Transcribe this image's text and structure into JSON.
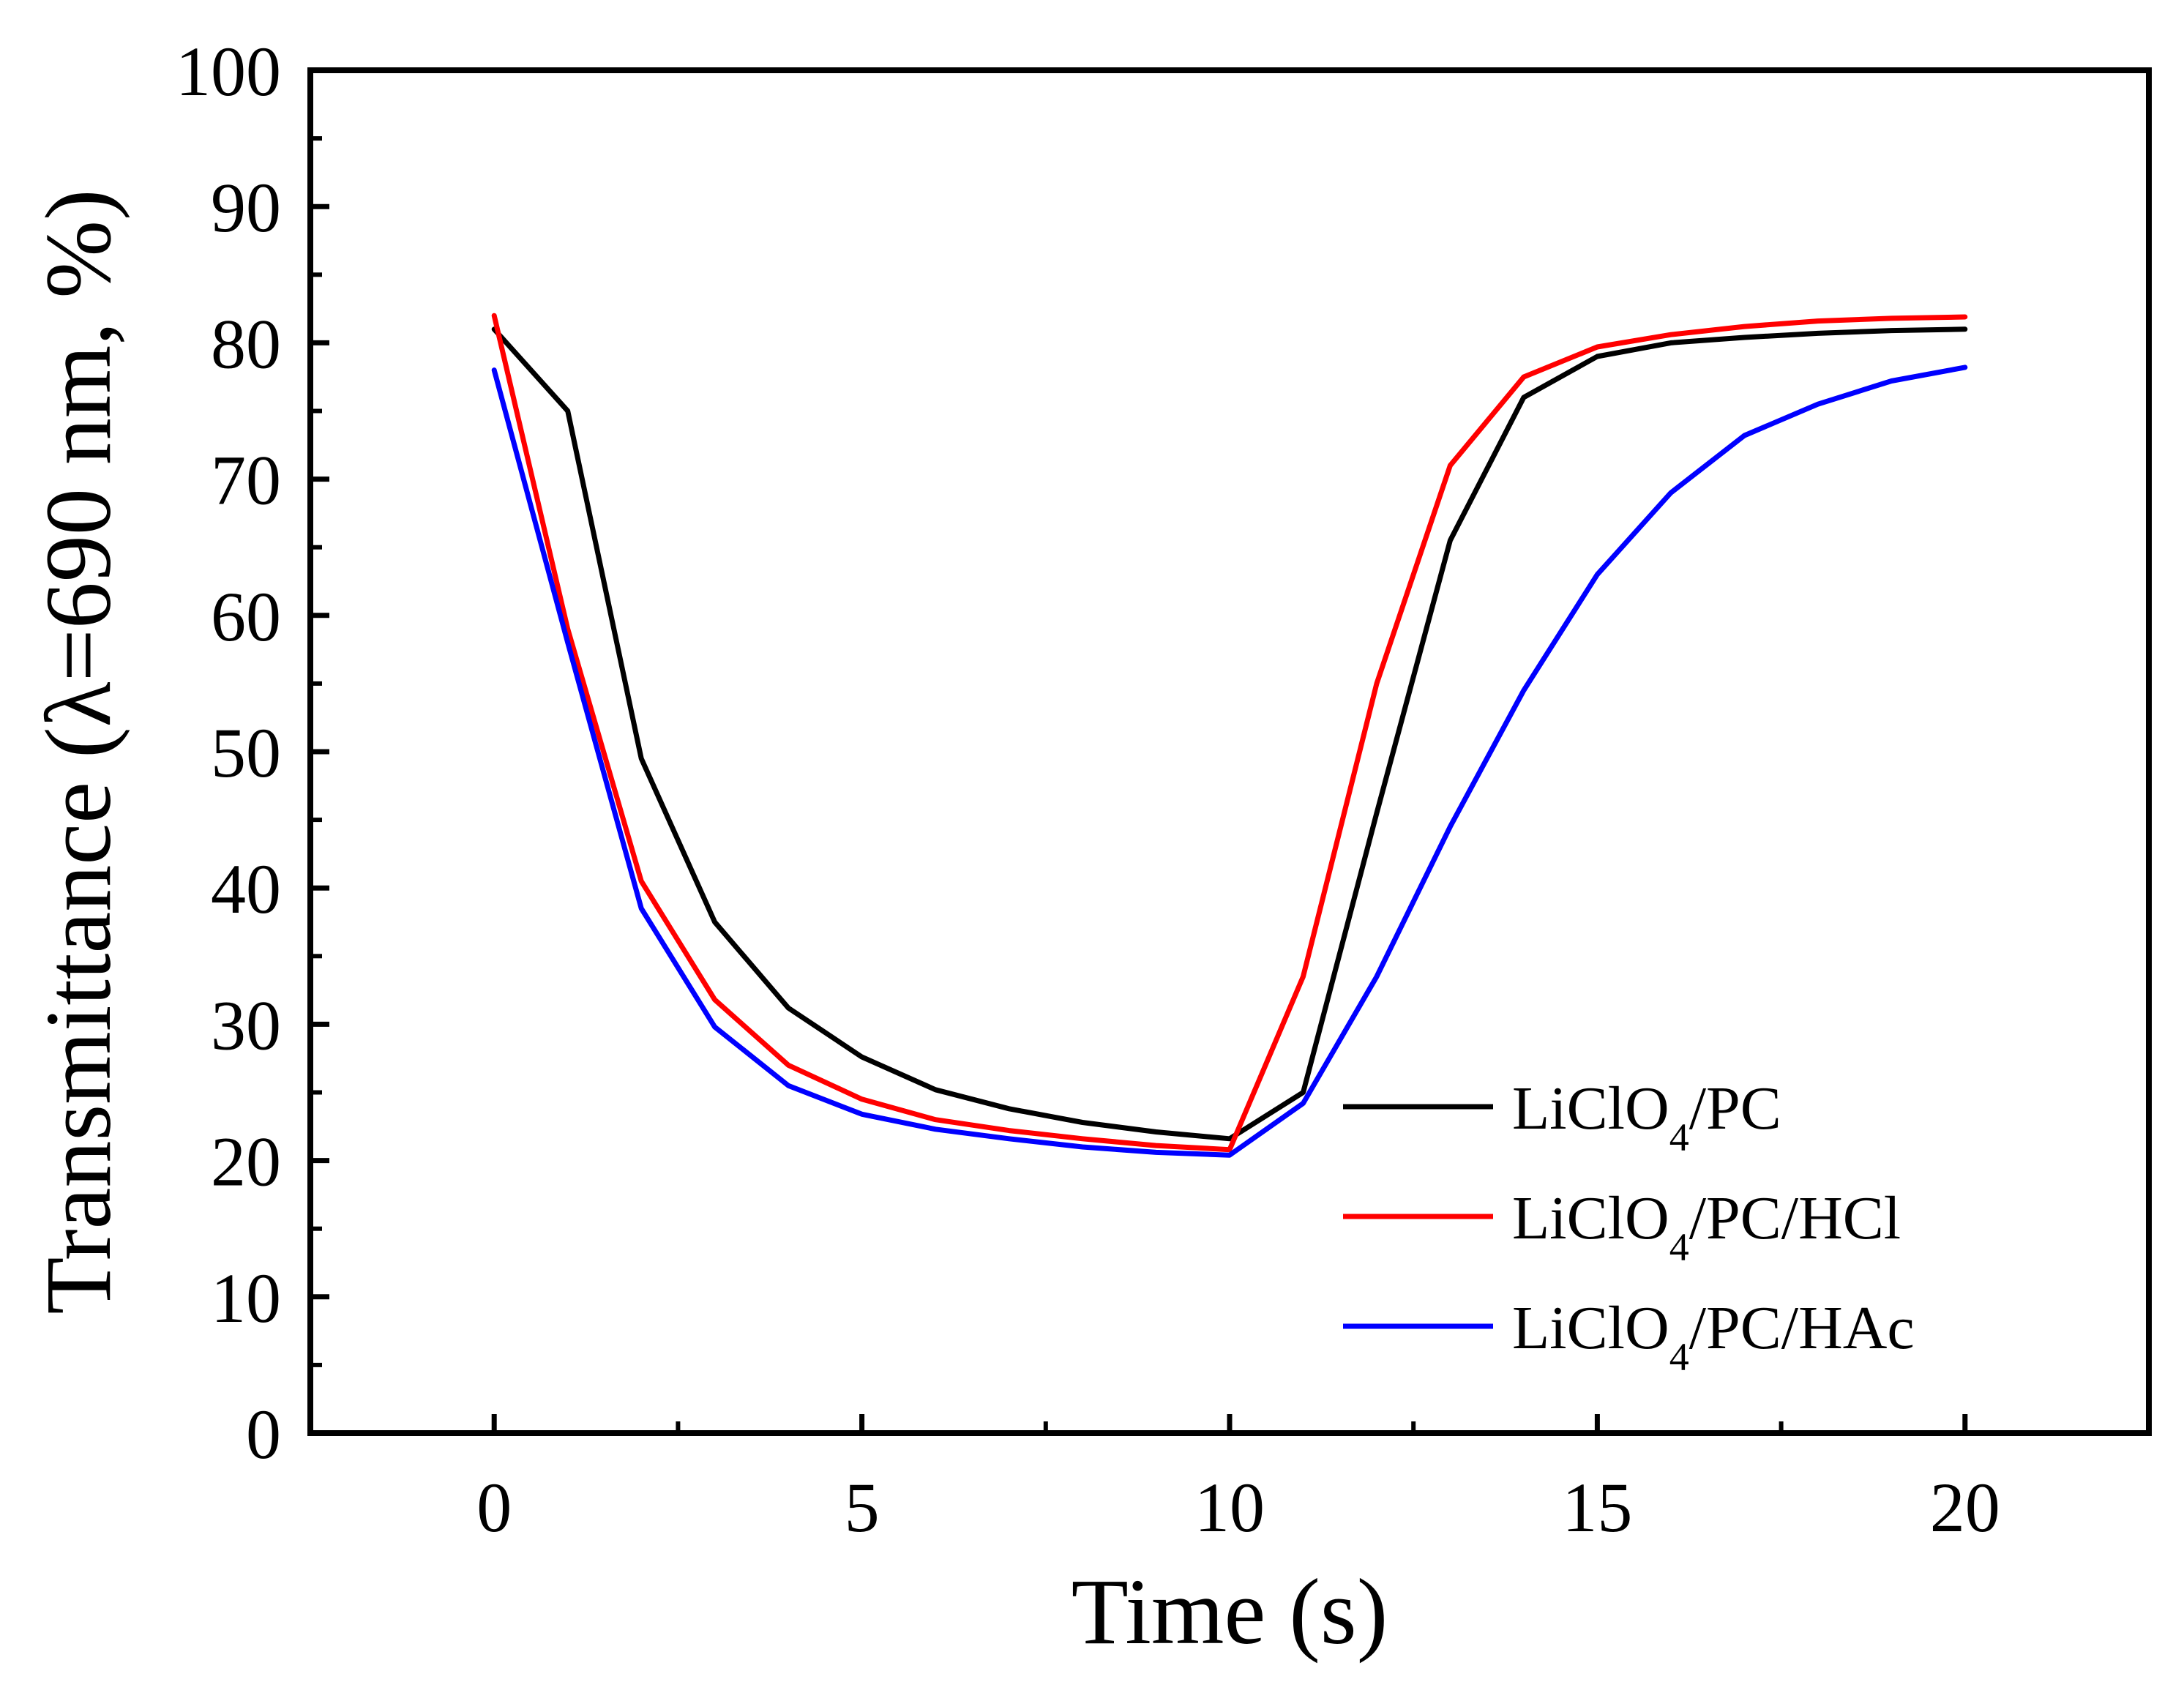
{
  "chart_data": {
    "type": "line",
    "title": "",
    "xlabel": "Time (s)",
    "ylabel": "Transmittance (λ=690 nm, %)",
    "xlim": [
      -2.5,
      22.5
    ],
    "ylim": [
      0,
      100
    ],
    "xticks": [
      0,
      5,
      10,
      15,
      20
    ],
    "yticks": [
      0,
      10,
      20,
      30,
      40,
      50,
      60,
      70,
      80,
      90,
      100
    ],
    "grid": false,
    "legend_position": "bottom-right",
    "x": [
      0,
      1,
      2,
      3,
      4,
      5,
      6,
      7,
      8,
      9,
      10,
      11,
      12,
      13,
      14,
      15,
      16,
      17,
      18,
      19,
      20
    ],
    "series": [
      {
        "name": "LiClO4/PC",
        "legend_main": "LiClO",
        "legend_sub": "4",
        "legend_rest": "/PC",
        "color": "#000000",
        "values": [
          81.0,
          75.0,
          49.5,
          37.5,
          31.2,
          27.6,
          25.2,
          23.8,
          22.8,
          22.1,
          21.6,
          25.0,
          45.5,
          65.5,
          76.0,
          79.0,
          80.0,
          80.4,
          80.7,
          80.9,
          81.0
        ]
      },
      {
        "name": "LiClO4/PC/HCl",
        "legend_main": "LiClO",
        "legend_sub": "4",
        "legend_rest": "/PC/HCl",
        "color": "#ff0000",
        "values": [
          82.0,
          59.0,
          40.5,
          31.8,
          27.0,
          24.5,
          23.0,
          22.2,
          21.6,
          21.1,
          20.8,
          33.5,
          55.0,
          71.0,
          77.5,
          79.7,
          80.6,
          81.2,
          81.6,
          81.8,
          81.9
        ]
      },
      {
        "name": "LiClO4/PC/HAc",
        "legend_main": "LiClO",
        "legend_sub": "4",
        "legend_rest": "/PC/HAc",
        "color": "#0000ff",
        "values": [
          78.0,
          58.0,
          38.5,
          29.8,
          25.5,
          23.4,
          22.3,
          21.6,
          21.0,
          20.6,
          20.4,
          24.2,
          33.5,
          44.5,
          54.5,
          63.0,
          69.0,
          73.2,
          75.5,
          77.2,
          78.2
        ]
      }
    ]
  }
}
